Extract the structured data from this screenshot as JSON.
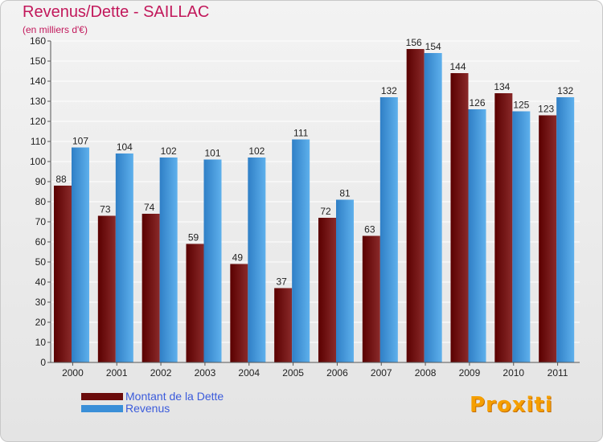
{
  "chart_data": {
    "type": "bar",
    "title": "Revenus/Dette - SAILLAC",
    "subtitle": "(en milliers d'€)",
    "categories": [
      "2000",
      "2001",
      "2002",
      "2003",
      "2004",
      "2005",
      "2006",
      "2007",
      "2008",
      "2009",
      "2010",
      "2011"
    ],
    "series": [
      {
        "name": "Montant de la Dette",
        "color": "#7a0a0a",
        "values": [
          88,
          73,
          74,
          59,
          49,
          37,
          72,
          63,
          156,
          144,
          134,
          123
        ]
      },
      {
        "name": "Revenus",
        "color": "#3a8fd8",
        "values": [
          107,
          104,
          102,
          101,
          102,
          111,
          81,
          132,
          154,
          126,
          125,
          132
        ]
      }
    ],
    "ylim": [
      0,
      160
    ],
    "yticks": [
      0,
      10,
      20,
      30,
      40,
      50,
      60,
      70,
      80,
      90,
      100,
      110,
      120,
      130,
      140,
      150,
      160
    ],
    "grid": true,
    "legend": "bottom-left",
    "data_labels": true
  },
  "logo_text": "Proxiti"
}
